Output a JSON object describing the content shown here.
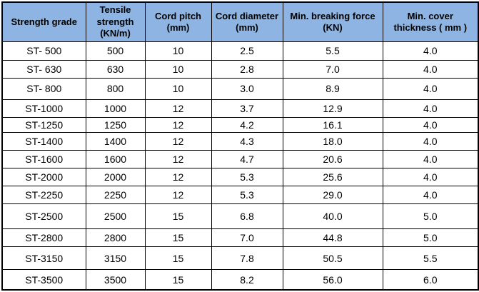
{
  "colors": {
    "header_bg": "#8DB4E2",
    "border": "#000000",
    "row_bg": "#FFFFFF",
    "text": "#000000"
  },
  "table": {
    "columns": [
      {
        "label": "Strength grade"
      },
      {
        "label": "Tensile strength (KN/m)"
      },
      {
        "label": "Cord pitch (mm)"
      },
      {
        "label": "Cord diameter (mm)"
      },
      {
        "label": "Min. breaking force (KN)"
      },
      {
        "label": "Min. cover thickness ( mm )"
      }
    ],
    "rows": [
      [
        "ST- 500",
        "500",
        "10",
        "2.5",
        "5.5",
        "4.0"
      ],
      [
        "ST- 630",
        "630",
        "10",
        "2.8",
        "7.0",
        "4.0"
      ],
      [
        "ST- 800",
        "800",
        "10",
        "3.0",
        "8.9",
        "4.0"
      ],
      [
        "ST-1000",
        "1000",
        "12",
        "3.7",
        "12.9",
        "4.0"
      ],
      [
        "ST-1250",
        "1250",
        "12",
        "4.2",
        "16.1",
        "4.0"
      ],
      [
        "ST-1400",
        "1400",
        "12",
        "4.3",
        "18.0",
        "4.0"
      ],
      [
        "ST-1600",
        "1600",
        "12",
        "4.7",
        "20.6",
        "4.0"
      ],
      [
        "ST-2000",
        "2000",
        "12",
        "5.3",
        "25.6",
        "4.0"
      ],
      [
        "ST-2250",
        "2250",
        "12",
        "5.3",
        "29.0",
        "4.0"
      ],
      [
        "ST-2500",
        "2500",
        "15",
        "6.8",
        "40.0",
        "5.0"
      ],
      [
        "ST-2800",
        "2800",
        "15",
        "7.0",
        "44.8",
        "5.0"
      ],
      [
        "ST-3150",
        "3150",
        "15",
        "7.8",
        "50.5",
        "5.5"
      ],
      [
        "ST-3500",
        "3500",
        "15",
        "8.2",
        "56.0",
        "6.0"
      ]
    ]
  }
}
